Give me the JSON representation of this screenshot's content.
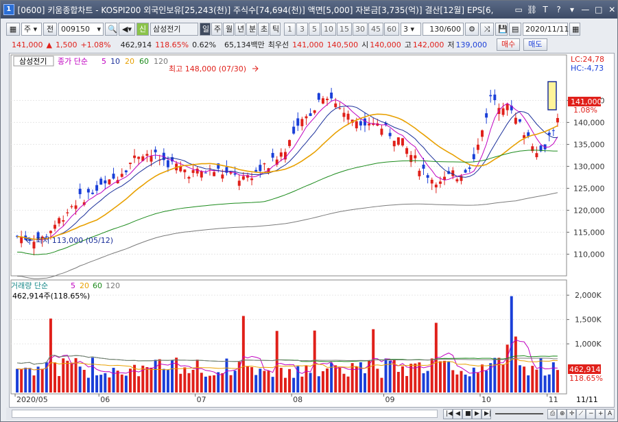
{
  "title_bar": {
    "text": "[0600] 키움종합차트 - KOSPI200 외국인보유[25,243(천)] 주식수[74,694(천)] 액면[5,000] 자본금[3,735(억)] 결산[12월] EPS[6,",
    "icon_label": "1"
  },
  "toolbar": {
    "period": "주",
    "prev_label": "전",
    "code": "009150",
    "badge": "신",
    "stock_name": "삼성전기",
    "tabs": [
      "일",
      "주",
      "월",
      "년",
      "분",
      "초",
      "틱"
    ],
    "active_tab": "일",
    "numbers": [
      "1",
      "3",
      "5",
      "10",
      "15",
      "30",
      "45",
      "60"
    ],
    "num_select": "3",
    "count": "130/600",
    "date": "2020/11/11"
  },
  "quote": {
    "price": "141,000",
    "change_arrow": "▲",
    "change": "1,500",
    "change_pct": "+1.08%",
    "volume": "462,914",
    "vol_ratio": "118.65%",
    "turnover": "0.62%",
    "amount": "65,134백만",
    "priority_label": "최우선",
    "ask": "141,000",
    "bid": "140,500",
    "open_label": "시",
    "open": "140,000",
    "high_label": "고",
    "high": "142,000",
    "low_label": "저",
    "low": "139,000",
    "buy_label": "매수",
    "sell_label": "매도"
  },
  "price_panel": {
    "stock_label": "삼성전기",
    "legend_prefix": "종가 단순",
    "ma_labels": [
      "5",
      "10",
      "20",
      "60",
      "120"
    ],
    "lc": "LC:24,78",
    "hc": "HC:-4,73",
    "high_annot": "최고 148,000 (07/30)",
    "low_annot": "최저 113,000 (05/12)",
    "last_price": "141,000",
    "last_pct": "1.08%",
    "y_ticks": [
      "145,000",
      "140,000",
      "135,000",
      "130,000",
      "125,000",
      "120,000",
      "115,000",
      "110,000"
    ]
  },
  "volume_panel": {
    "legend_prefix": "거래량 단순",
    "ma_labels": [
      "5",
      "20",
      "60",
      "120"
    ],
    "info": "462,914주(118.65%)",
    "y_ticks": [
      "2,000K",
      "1,500K",
      "1,000K"
    ],
    "last_value": "462,914",
    "last_pct": "118.65%"
  },
  "x_axis": {
    "labels": [
      "2020/05",
      "06",
      "07",
      "08",
      "09",
      "10",
      "11"
    ],
    "right_label": "11/11"
  },
  "colors": {
    "up": "#e0201a",
    "down": "#1a3fd8",
    "ma5": "#c000c0",
    "ma10": "#1a2f9a",
    "ma20": "#e8a000",
    "ma60": "#1a8a1a",
    "ma120": "#7a7a7a"
  },
  "chart_data": {
    "type": "candlestick",
    "price_range": [
      106000,
      151000
    ],
    "volume_range": [
      0,
      2200000
    ],
    "dates_start": "2020/05/04",
    "dates_end": "2020/11/11",
    "note_high": {
      "label": "최고",
      "value": 148000,
      "date": "07/30"
    },
    "note_low": {
      "label": "최저",
      "value": 113000,
      "date": "05/12"
    }
  }
}
